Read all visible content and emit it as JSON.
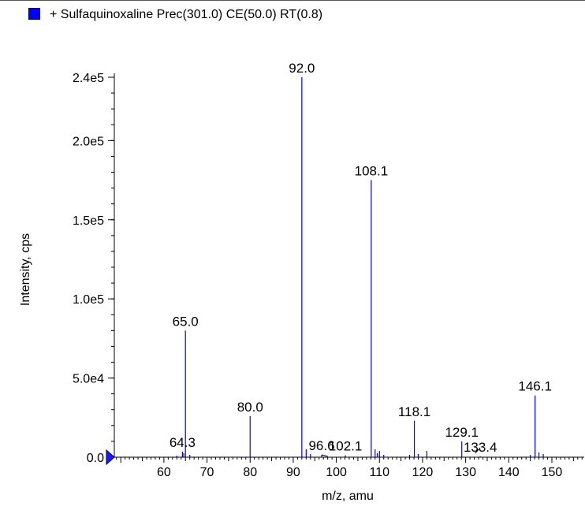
{
  "chart_data": {
    "type": "bar",
    "title": "+ Sulfaquinoxaline Prec(301.0) CE(50.0) RT(0.8)",
    "xlabel": "m/z, amu",
    "ylabel": "Intensity, cps",
    "xlim": [
      48.5,
      157.5
    ],
    "ylim": [
      0,
      240000
    ],
    "series_color": "#0000ff",
    "x_ticks": [
      60,
      70,
      80,
      90,
      100,
      110,
      120,
      130,
      140,
      150
    ],
    "x_tick_labels": [
      "60",
      "70",
      "80",
      "90",
      "100",
      "110",
      "120",
      "130",
      "140",
      "150"
    ],
    "y_ticks": [
      0,
      50000,
      100000,
      150000,
      200000,
      240000
    ],
    "y_tick_labels": [
      "0.0",
      "5.0e4",
      "1.0e5",
      "1.5e5",
      "2.0e5",
      "2.4e5"
    ],
    "peaks": [
      {
        "mz": 63.0,
        "intensity": 1000
      },
      {
        "mz": 64.3,
        "intensity": 3500
      },
      {
        "mz": 64.6,
        "intensity": 2500
      },
      {
        "mz": 65.0,
        "intensity": 80000
      },
      {
        "mz": 66.0,
        "intensity": 1500
      },
      {
        "mz": 80.0,
        "intensity": 26000
      },
      {
        "mz": 92.0,
        "intensity": 240000
      },
      {
        "mz": 93.0,
        "intensity": 5000
      },
      {
        "mz": 94.0,
        "intensity": 2000
      },
      {
        "mz": 96.6,
        "intensity": 1500
      },
      {
        "mz": 102.1,
        "intensity": 1200
      },
      {
        "mz": 108.1,
        "intensity": 175000
      },
      {
        "mz": 109.0,
        "intensity": 5000
      },
      {
        "mz": 109.5,
        "intensity": 2500
      },
      {
        "mz": 110.0,
        "intensity": 4000
      },
      {
        "mz": 111.0,
        "intensity": 1500
      },
      {
        "mz": 117.0,
        "intensity": 1500
      },
      {
        "mz": 118.1,
        "intensity": 23000
      },
      {
        "mz": 119.0,
        "intensity": 2000
      },
      {
        "mz": 121.0,
        "intensity": 4000
      },
      {
        "mz": 129.1,
        "intensity": 10000
      },
      {
        "mz": 133.4,
        "intensity": 500
      },
      {
        "mz": 145.0,
        "intensity": 1500
      },
      {
        "mz": 146.1,
        "intensity": 39000
      },
      {
        "mz": 147.0,
        "intensity": 3000
      },
      {
        "mz": 148.0,
        "intensity": 2000
      }
    ],
    "labels": [
      {
        "text": "92.0",
        "mz": 92.0,
        "intensity": 240000
      },
      {
        "text": "108.1",
        "mz": 108.1,
        "intensity": 175000
      },
      {
        "text": "65.0",
        "mz": 65.0,
        "intensity": 80000
      },
      {
        "text": "146.1",
        "mz": 146.1,
        "intensity": 39000
      },
      {
        "text": "80.0",
        "mz": 80.0,
        "intensity": 26000
      },
      {
        "text": "118.1",
        "mz": 118.1,
        "intensity": 23000
      },
      {
        "text": "129.1",
        "mz": 129.1,
        "intensity": 10000
      },
      {
        "text": "64.3",
        "mz": 64.3,
        "intensity": 3500
      },
      {
        "text": "96.6",
        "mz": 96.6,
        "intensity": 1500
      },
      {
        "text": "102.1",
        "mz": 102.1,
        "intensity": 1200
      },
      {
        "text": "133.4",
        "mz": 133.4,
        "intensity": 500
      }
    ]
  }
}
